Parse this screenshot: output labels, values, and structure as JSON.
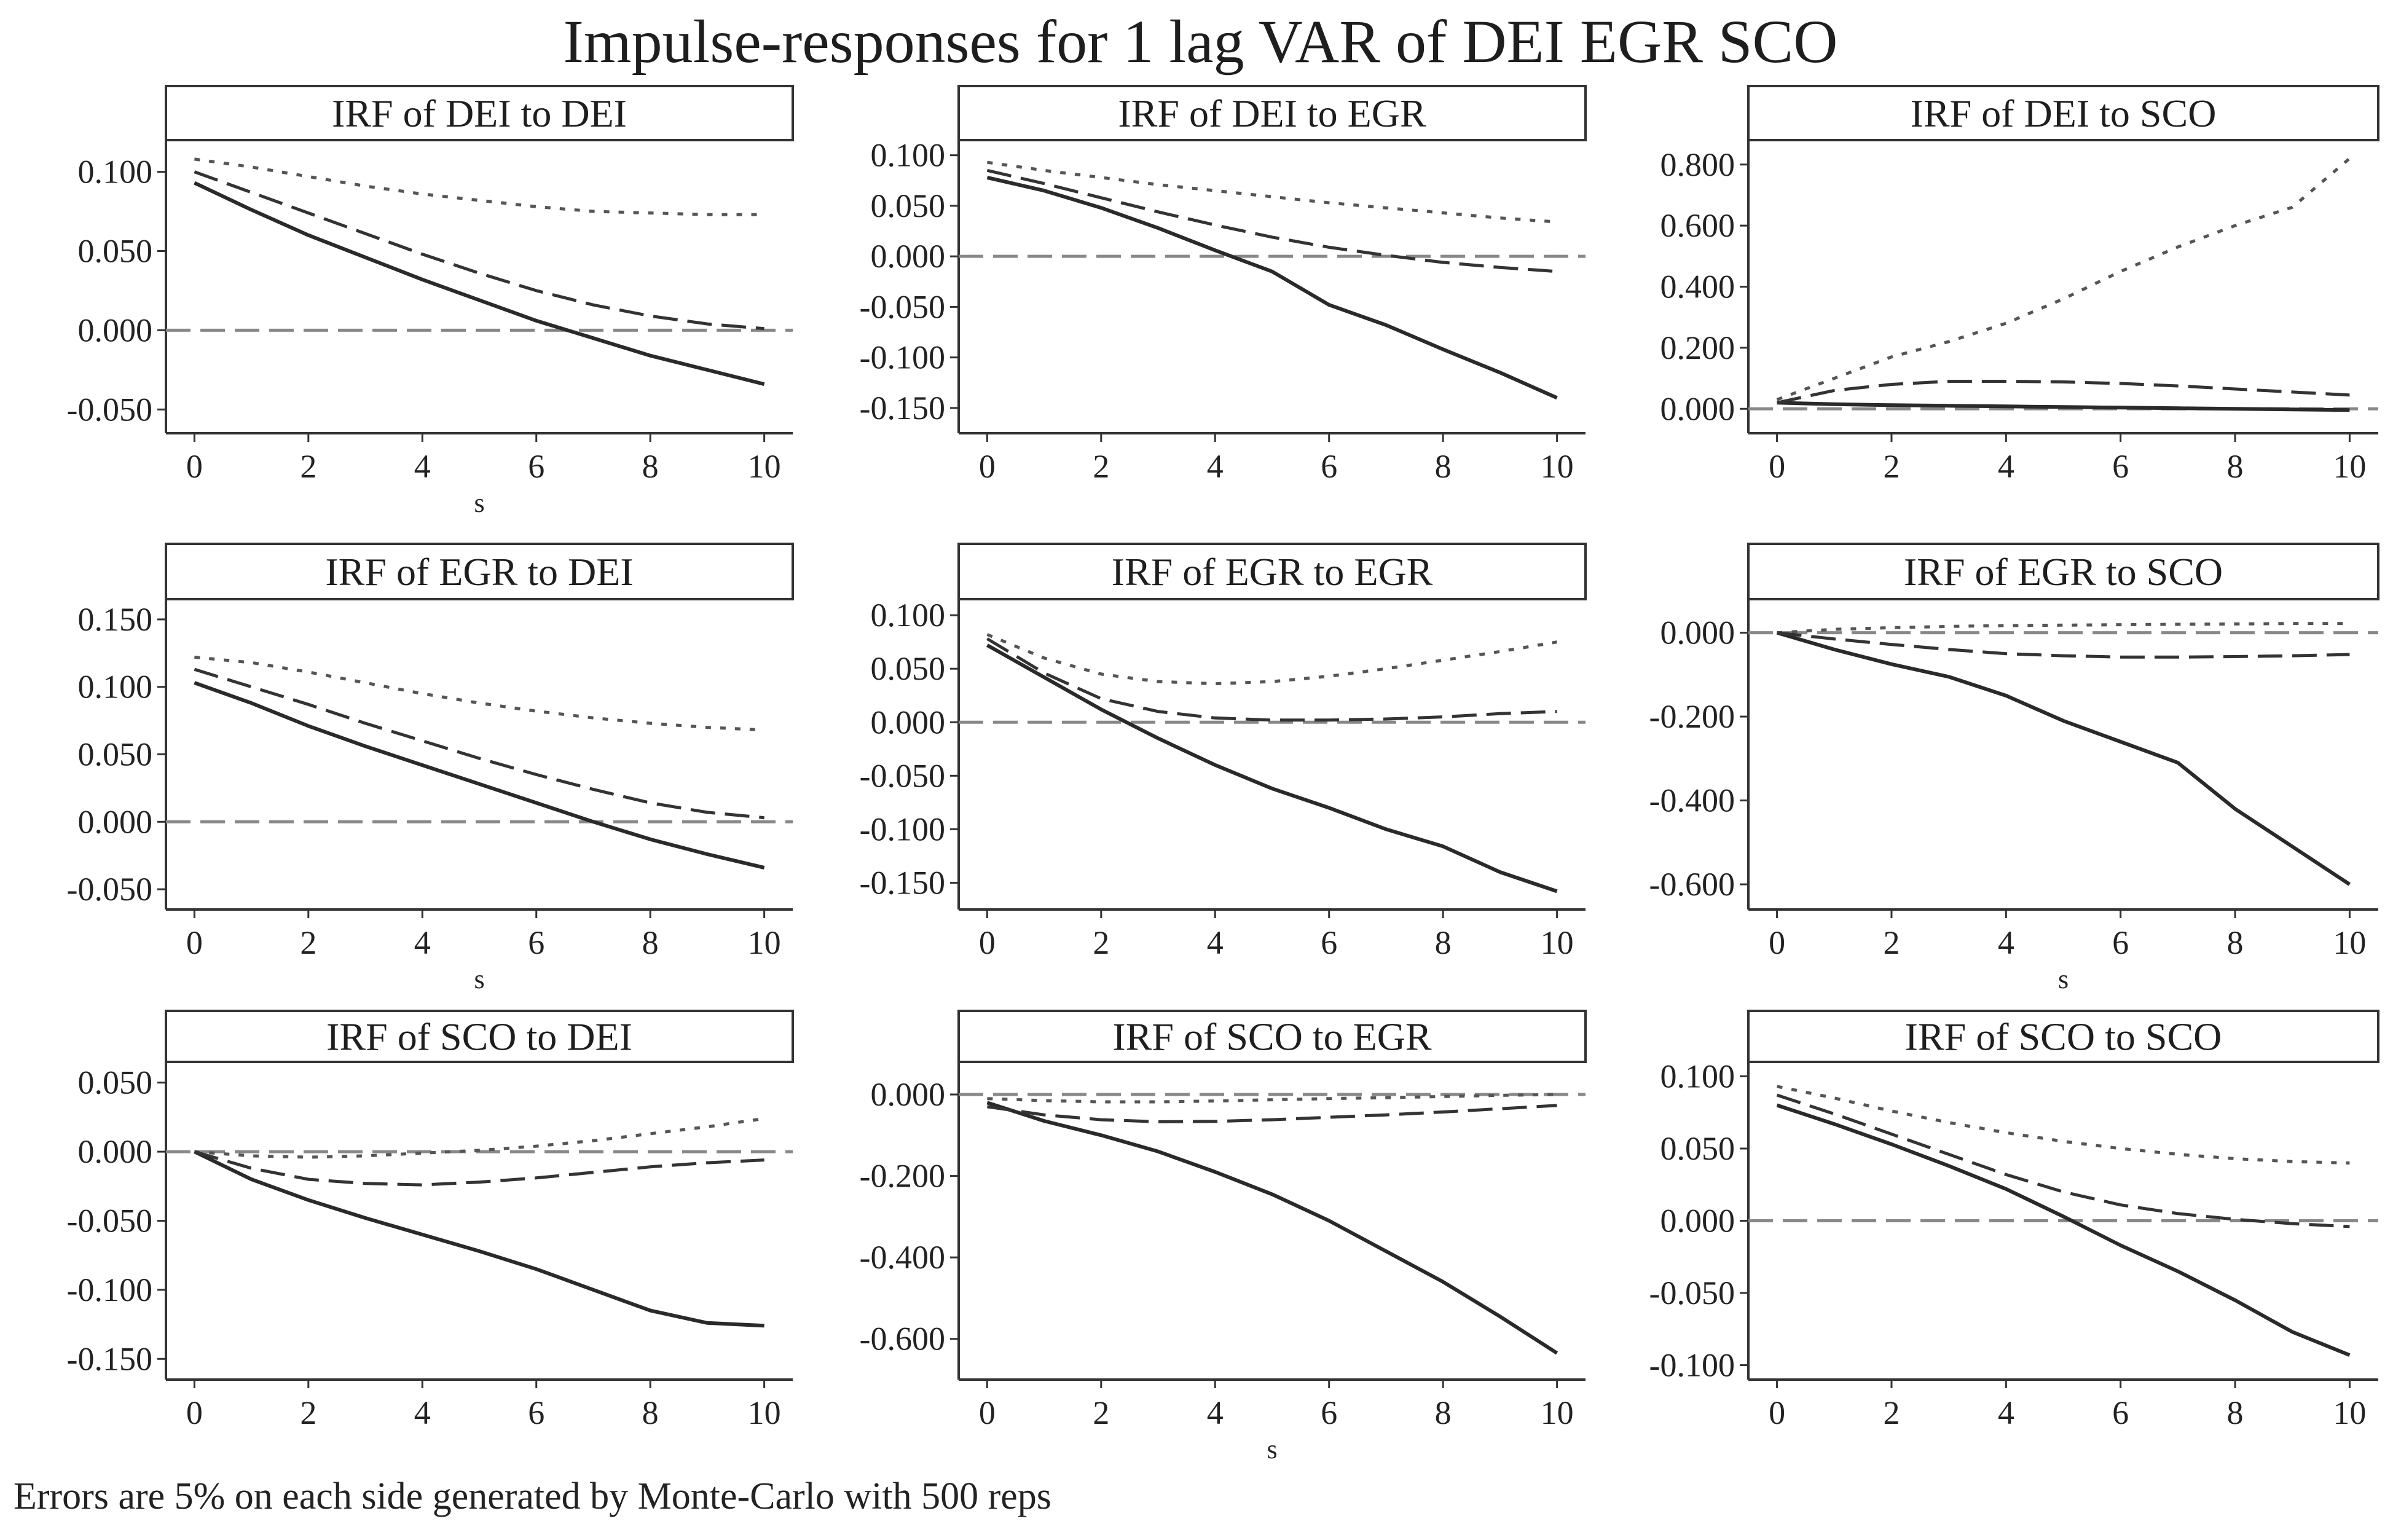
{
  "title": "Impulse-responses for 1 lag VAR of DEI EGR SCO",
  "footnote": "Errors are 5% on each side generated by Monte-Carlo with 500 reps",
  "colors": {
    "irf_line": "#2a2a2a",
    "upper_band": "#555555",
    "lower_band": "#333333",
    "zero_line": "#888888",
    "axis": "#333333"
  },
  "chart_data": [
    {
      "type": "line",
      "title": "IRF of DEI to DEI",
      "xlabel": "s",
      "ylabel": "",
      "x": [
        0,
        1,
        2,
        3,
        4,
        5,
        6,
        7,
        8,
        9,
        10
      ],
      "xlim": [
        -0.5,
        10.5
      ],
      "ylim": [
        -0.065,
        0.12
      ],
      "xticks": [
        0,
        2,
        4,
        6,
        8,
        10
      ],
      "yticks": [
        0.1,
        0.05,
        0.0,
        -0.05
      ],
      "ytick_labels": [
        "0.100",
        "0.050",
        "0.000",
        "-0.050"
      ],
      "series": [
        {
          "name": "irf",
          "values": [
            0.093,
            0.076,
            0.06,
            0.046,
            0.032,
            0.019,
            0.006,
            -0.005,
            -0.016,
            -0.025,
            -0.034
          ]
        },
        {
          "name": "upper",
          "values": [
            0.108,
            0.103,
            0.097,
            0.091,
            0.086,
            0.082,
            0.078,
            0.075,
            0.074,
            0.073,
            0.073
          ]
        },
        {
          "name": "lower",
          "values": [
            0.1,
            0.087,
            0.074,
            0.061,
            0.048,
            0.036,
            0.025,
            0.016,
            0.009,
            0.004,
            0.001
          ]
        }
      ]
    },
    {
      "type": "line",
      "title": "IRF of DEI to EGR",
      "xlabel": "",
      "ylabel": "",
      "x": [
        0,
        1,
        2,
        3,
        4,
        5,
        6,
        7,
        8,
        9,
        10
      ],
      "xlim": [
        -0.5,
        10.5
      ],
      "ylim": [
        -0.175,
        0.115
      ],
      "xticks": [
        0,
        2,
        4,
        6,
        8,
        10
      ],
      "yticks": [
        0.1,
        0.05,
        0.0,
        -0.05,
        -0.1,
        -0.15
      ],
      "ytick_labels": [
        "0.100",
        "0.050",
        "0.000",
        "-0.050",
        "-0.100",
        "-0.150"
      ],
      "series": [
        {
          "name": "irf",
          "values": [
            0.078,
            0.065,
            0.048,
            0.028,
            0.006,
            -0.015,
            -0.048,
            -0.068,
            -0.092,
            -0.115,
            -0.14
          ]
        },
        {
          "name": "upper",
          "values": [
            0.093,
            0.085,
            0.078,
            0.071,
            0.065,
            0.059,
            0.053,
            0.048,
            0.043,
            0.038,
            0.034
          ]
        },
        {
          "name": "lower",
          "values": [
            0.085,
            0.072,
            0.058,
            0.044,
            0.031,
            0.019,
            0.009,
            0.001,
            -0.006,
            -0.011,
            -0.015
          ]
        }
      ]
    },
    {
      "type": "line",
      "title": "IRF of DEI to SCO",
      "xlabel": "",
      "ylabel": "",
      "x": [
        0,
        1,
        2,
        3,
        4,
        5,
        6,
        7,
        8,
        9,
        10
      ],
      "xlim": [
        -0.5,
        10.5
      ],
      "ylim": [
        -0.08,
        0.88
      ],
      "xticks": [
        0,
        2,
        4,
        6,
        8,
        10
      ],
      "yticks": [
        0.8,
        0.6,
        0.4,
        0.2,
        0.0
      ],
      "ytick_labels": [
        "0.800",
        "0.600",
        "0.400",
        "0.200",
        "0.000"
      ],
      "series": [
        {
          "name": "irf",
          "values": [
            0.02,
            0.015,
            0.012,
            0.01,
            0.008,
            0.006,
            0.004,
            0.002,
            0.0,
            -0.002,
            -0.004
          ]
        },
        {
          "name": "upper",
          "values": [
            0.03,
            0.1,
            0.17,
            0.22,
            0.28,
            0.36,
            0.45,
            0.53,
            0.6,
            0.66,
            0.82
          ]
        },
        {
          "name": "lower",
          "values": [
            0.02,
            0.06,
            0.08,
            0.09,
            0.09,
            0.088,
            0.083,
            0.075,
            0.065,
            0.055,
            0.045
          ]
        }
      ]
    },
    {
      "type": "line",
      "title": "IRF of EGR to DEI",
      "xlabel": "s",
      "ylabel": "",
      "x": [
        0,
        1,
        2,
        3,
        4,
        5,
        6,
        7,
        8,
        9,
        10
      ],
      "xlim": [
        -0.5,
        10.5
      ],
      "ylim": [
        -0.065,
        0.165
      ],
      "xticks": [
        0,
        2,
        4,
        6,
        8,
        10
      ],
      "yticks": [
        0.15,
        0.1,
        0.05,
        0.0,
        -0.05
      ],
      "ytick_labels": [
        "0.150",
        "0.100",
        "0.050",
        "0.000",
        "-0.050"
      ],
      "series": [
        {
          "name": "irf",
          "values": [
            0.103,
            0.088,
            0.071,
            0.056,
            0.042,
            0.028,
            0.014,
            0.0,
            -0.013,
            -0.024,
            -0.034
          ]
        },
        {
          "name": "upper",
          "values": [
            0.122,
            0.118,
            0.111,
            0.103,
            0.095,
            0.088,
            0.082,
            0.077,
            0.073,
            0.07,
            0.068
          ]
        },
        {
          "name": "lower",
          "values": [
            0.113,
            0.1,
            0.087,
            0.073,
            0.06,
            0.047,
            0.035,
            0.024,
            0.014,
            0.007,
            0.003
          ]
        }
      ]
    },
    {
      "type": "line",
      "title": "IRF of EGR to EGR",
      "xlabel": "",
      "ylabel": "",
      "x": [
        0,
        1,
        2,
        3,
        4,
        5,
        6,
        7,
        8,
        9,
        10
      ],
      "xlim": [
        -0.5,
        10.5
      ],
      "ylim": [
        -0.175,
        0.115
      ],
      "xticks": [
        0,
        2,
        4,
        6,
        8,
        10
      ],
      "yticks": [
        0.1,
        0.05,
        0.0,
        -0.05,
        -0.1,
        -0.15
      ],
      "ytick_labels": [
        "0.100",
        "0.050",
        "0.000",
        "-0.050",
        "-0.100",
        "-0.150"
      ],
      "series": [
        {
          "name": "irf",
          "values": [
            0.072,
            0.042,
            0.012,
            -0.015,
            -0.04,
            -0.062,
            -0.08,
            -0.1,
            -0.116,
            -0.14,
            -0.158
          ]
        },
        {
          "name": "upper",
          "values": [
            0.082,
            0.06,
            0.045,
            0.038,
            0.036,
            0.038,
            0.043,
            0.05,
            0.058,
            0.066,
            0.075
          ]
        },
        {
          "name": "lower",
          "values": [
            0.078,
            0.046,
            0.022,
            0.01,
            0.004,
            0.002,
            0.002,
            0.003,
            0.005,
            0.008,
            0.01
          ]
        }
      ]
    },
    {
      "type": "line",
      "title": "IRF of EGR to SCO",
      "xlabel": "s",
      "ylabel": "",
      "x": [
        0,
        1,
        2,
        3,
        4,
        5,
        6,
        7,
        8,
        9,
        10
      ],
      "xlim": [
        -0.5,
        10.5
      ],
      "ylim": [
        -0.66,
        0.08
      ],
      "xticks": [
        0,
        2,
        4,
        6,
        8,
        10
      ],
      "yticks": [
        0.0,
        -0.2,
        -0.4,
        -0.6
      ],
      "ytick_labels": [
        "0.000",
        "-0.200",
        "-0.400",
        "-0.600"
      ],
      "series": [
        {
          "name": "irf",
          "values": [
            0.0,
            -0.04,
            -0.075,
            -0.105,
            -0.15,
            -0.21,
            -0.26,
            -0.31,
            -0.42,
            -0.51,
            -0.6
          ]
        },
        {
          "name": "upper",
          "values": [
            0.0,
            0.008,
            0.012,
            0.015,
            0.017,
            0.018,
            0.019,
            0.02,
            0.021,
            0.022,
            0.022
          ]
        },
        {
          "name": "lower",
          "values": [
            0.0,
            -0.015,
            -0.028,
            -0.04,
            -0.05,
            -0.055,
            -0.058,
            -0.058,
            -0.057,
            -0.055,
            -0.052
          ]
        }
      ]
    },
    {
      "type": "line",
      "title": "IRF of SCO to DEI",
      "xlabel": "",
      "ylabel": "",
      "x": [
        0,
        1,
        2,
        3,
        4,
        5,
        6,
        7,
        8,
        9,
        10
      ],
      "xlim": [
        -0.5,
        10.5
      ],
      "ylim": [
        -0.165,
        0.065
      ],
      "xticks": [
        0,
        2,
        4,
        6,
        8,
        10
      ],
      "yticks": [
        0.05,
        0.0,
        -0.05,
        -0.1,
        -0.15
      ],
      "ytick_labels": [
        "0.050",
        "0.000",
        "-0.050",
        "-0.100",
        "-0.150"
      ],
      "series": [
        {
          "name": "irf",
          "values": [
            0.0,
            -0.02,
            -0.035,
            -0.048,
            -0.06,
            -0.072,
            -0.085,
            -0.1,
            -0.115,
            -0.124,
            -0.126
          ]
        },
        {
          "name": "upper",
          "values": [
            0.0,
            -0.003,
            -0.004,
            -0.003,
            -0.001,
            0.001,
            0.004,
            0.008,
            0.013,
            0.018,
            0.024
          ]
        },
        {
          "name": "lower",
          "values": [
            0.0,
            -0.012,
            -0.02,
            -0.023,
            -0.024,
            -0.022,
            -0.019,
            -0.015,
            -0.011,
            -0.008,
            -0.006
          ]
        }
      ]
    },
    {
      "type": "line",
      "title": "IRF of SCO to EGR",
      "xlabel": "s",
      "ylabel": "",
      "x": [
        0,
        1,
        2,
        3,
        4,
        5,
        6,
        7,
        8,
        9,
        10
      ],
      "xlim": [
        -0.5,
        10.5
      ],
      "ylim": [
        -0.7,
        0.08
      ],
      "xticks": [
        0,
        2,
        4,
        6,
        8,
        10
      ],
      "yticks": [
        0.0,
        -0.2,
        -0.4,
        -0.6
      ],
      "ytick_labels": [
        "0.000",
        "-0.200",
        "-0.400",
        "-0.600"
      ],
      "series": [
        {
          "name": "irf",
          "values": [
            -0.02,
            -0.065,
            -0.1,
            -0.14,
            -0.19,
            -0.245,
            -0.31,
            -0.385,
            -0.46,
            -0.545,
            -0.635
          ]
        },
        {
          "name": "upper",
          "values": [
            -0.01,
            -0.015,
            -0.018,
            -0.018,
            -0.016,
            -0.013,
            -0.01,
            -0.008,
            -0.005,
            -0.002,
            0.0
          ]
        },
        {
          "name": "lower",
          "values": [
            -0.03,
            -0.05,
            -0.062,
            -0.067,
            -0.066,
            -0.062,
            -0.056,
            -0.05,
            -0.043,
            -0.035,
            -0.027
          ]
        }
      ]
    },
    {
      "type": "line",
      "title": "IRF of SCO to SCO",
      "xlabel": "",
      "ylabel": "",
      "x": [
        0,
        1,
        2,
        3,
        4,
        5,
        6,
        7,
        8,
        9,
        10
      ],
      "xlim": [
        -0.5,
        10.5
      ],
      "ylim": [
        -0.11,
        0.11
      ],
      "xticks": [
        0,
        2,
        4,
        6,
        8,
        10
      ],
      "yticks": [
        0.1,
        0.05,
        0.0,
        -0.05,
        -0.1
      ],
      "ytick_labels": [
        "0.100",
        "0.050",
        "0.000",
        "-0.050",
        "-0.100"
      ],
      "series": [
        {
          "name": "irf",
          "values": [
            0.08,
            0.067,
            0.053,
            0.038,
            0.022,
            0.003,
            -0.017,
            -0.035,
            -0.055,
            -0.077,
            -0.093
          ]
        },
        {
          "name": "upper",
          "values": [
            0.093,
            0.085,
            0.076,
            0.068,
            0.061,
            0.055,
            0.05,
            0.046,
            0.043,
            0.041,
            0.04
          ]
        },
        {
          "name": "lower",
          "values": [
            0.087,
            0.074,
            0.06,
            0.046,
            0.032,
            0.02,
            0.011,
            0.005,
            0.001,
            -0.002,
            -0.004
          ]
        }
      ]
    }
  ]
}
